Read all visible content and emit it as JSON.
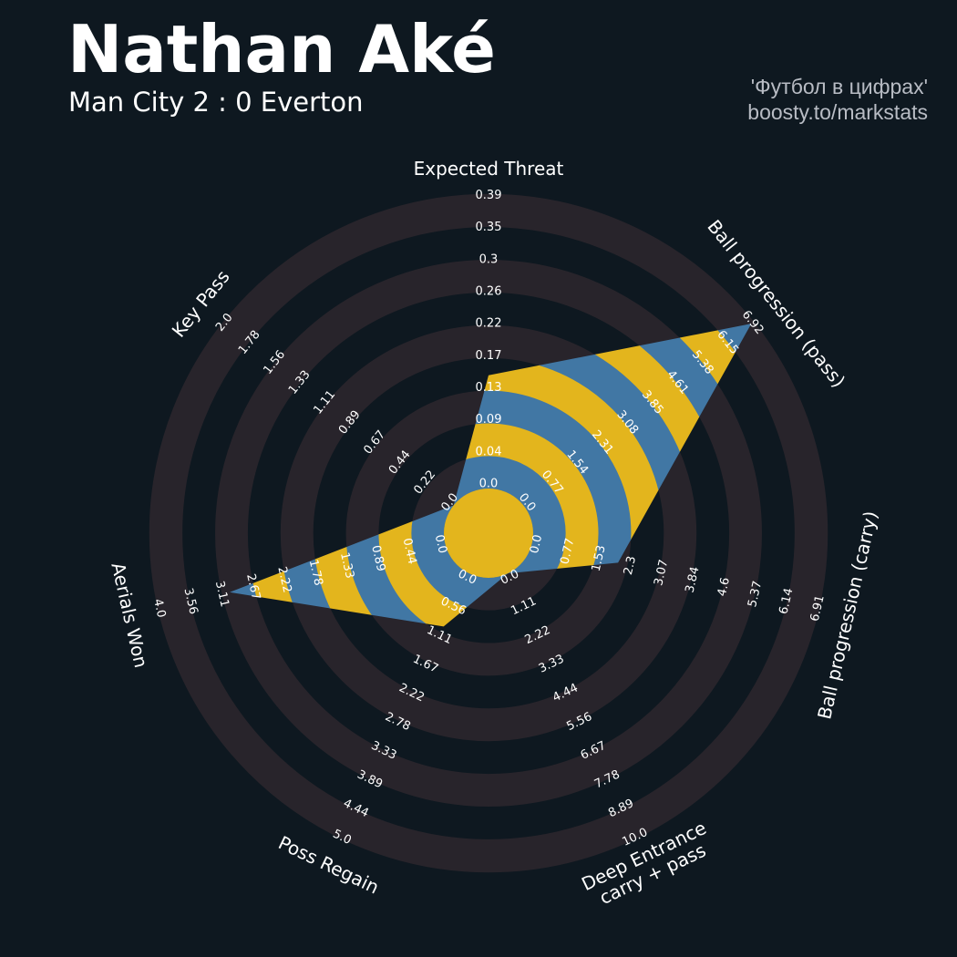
{
  "header": {
    "title": "Nathan Aké",
    "subtitle": "Man City 2 : 0 Everton",
    "credit_line1": "'Футбол в цифрах'",
    "credit_line2": "boosty.to/markstats"
  },
  "chart_data": {
    "type": "radar",
    "params": [
      {
        "label": [
          "Expected Threat"
        ],
        "min": 0,
        "max": 0.39,
        "value": 0.15,
        "ticks": [
          "0.0",
          "0.04",
          "0.09",
          "0.13",
          "0.17",
          "0.22",
          "0.26",
          "0.3",
          "0.35",
          "0.39"
        ]
      },
      {
        "label": [
          "Ball progression (pass)"
        ],
        "min": 0,
        "max": 6.92,
        "value": 6.85,
        "ticks": [
          "0.0",
          "0.77",
          "1.54",
          "2.31",
          "3.08",
          "3.85",
          "4.61",
          "5.38",
          "6.15",
          "6.92"
        ]
      },
      {
        "label": [
          "Ball progression (carry)"
        ],
        "min": 0,
        "max": 6.91,
        "value": 2.07,
        "ticks": [
          "0.0",
          "0.77",
          "1.53",
          "2.3",
          "3.07",
          "3.84",
          "4.6",
          "5.37",
          "6.14",
          "6.91"
        ]
      },
      {
        "label": [
          "Deep Entrance",
          "carry + pass"
        ],
        "min": 0,
        "max": 10.0,
        "value": 0,
        "ticks": [
          "0.0",
          "1.11",
          "2.22",
          "3.33",
          "4.44",
          "5.56",
          "6.67",
          "7.78",
          "8.89",
          "10.0"
        ]
      },
      {
        "label": [
          "Poss Regain"
        ],
        "min": 0,
        "max": 5.0,
        "value": 1.0,
        "ticks": [
          "0.0",
          "0.56",
          "1.11",
          "1.67",
          "2.22",
          "2.78",
          "3.33",
          "3.89",
          "4.44",
          "5.0"
        ]
      },
      {
        "label": [
          "Aerials Won"
        ],
        "min": 0,
        "max": 4.0,
        "value": 3.0,
        "ticks": [
          "0.0",
          "0.44",
          "0.89",
          "1.33",
          "1.78",
          "2.22",
          "2.67",
          "3.11",
          "3.56",
          "4.0"
        ]
      },
      {
        "label": [
          "Key Pass"
        ],
        "min": 0,
        "max": 2.0,
        "value": 0,
        "ticks": [
          "0.0",
          "0.22",
          "0.44",
          "0.67",
          "0.89",
          "1.11",
          "1.33",
          "1.56",
          "1.78",
          "2.0"
        ]
      }
    ],
    "colors": {
      "background": "#0e1820",
      "ring_light": "#28242b",
      "ring_dark": "#0e1820",
      "polygon_a": "#4177a4",
      "polygon_b": "#e3b51d",
      "center": "#e3b51d",
      "text": "#ffffff"
    }
  }
}
